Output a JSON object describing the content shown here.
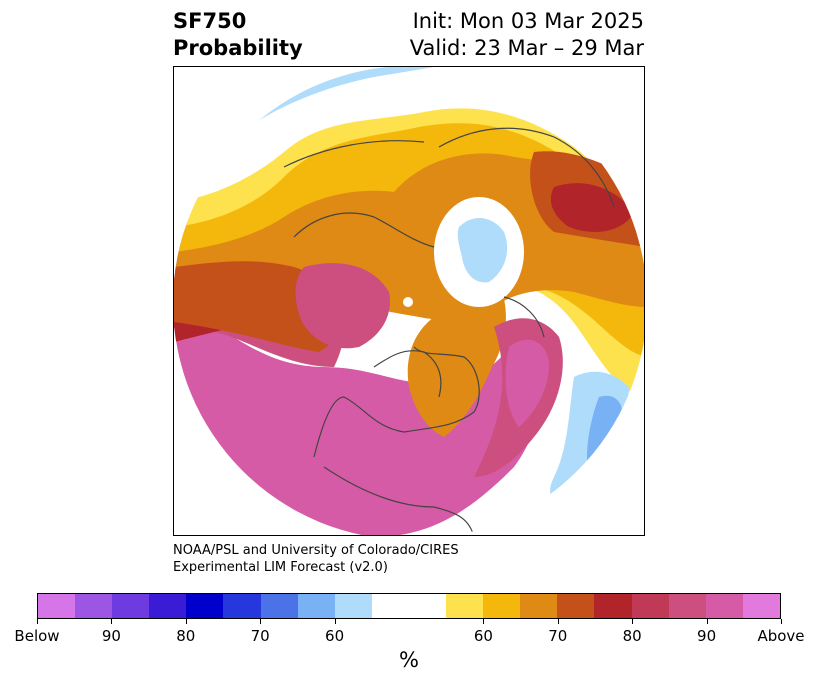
{
  "header": {
    "variable": "SF750",
    "product": "Probability",
    "init": "Init: Mon 03 Mar 2025",
    "valid": "Valid: 23 Mar – 29 Mar"
  },
  "credit": {
    "line1": "NOAA/PSL and University of Colorado/CIRES",
    "line2": "Experimental LIM Forecast (v2.0)"
  },
  "colorbar": {
    "units": "%",
    "colors": [
      "#d675e8",
      "#9d56e3",
      "#6e3be0",
      "#3b1cd6",
      "#0000cc",
      "#2638dd",
      "#4c72e8",
      "#79b2f4",
      "#b0dcfc",
      "#ffffff",
      "#ffffff",
      "#fde24e",
      "#f4b80c",
      "#df8a14",
      "#c45119",
      "#b0242a",
      "#c03a57",
      "#cc4f80",
      "#d65ba6",
      "#e27add"
    ],
    "tick_labels": [
      "Below",
      "90",
      "80",
      "70",
      "60",
      "60",
      "70",
      "80",
      "90",
      "Above"
    ]
  },
  "map": {
    "projection": "north-polar-stereographic",
    "region_colors": {
      "above_high": "#d65ba6",
      "above_mid": "#cc4f80",
      "above_80": "#b0242a",
      "above_70": "#c45119",
      "above_65": "#df8a14",
      "above_60": "#f4b80c",
      "above_55": "#fde24e",
      "below_55": "#b0dcfc",
      "below_60": "#79b2f4"
    }
  }
}
